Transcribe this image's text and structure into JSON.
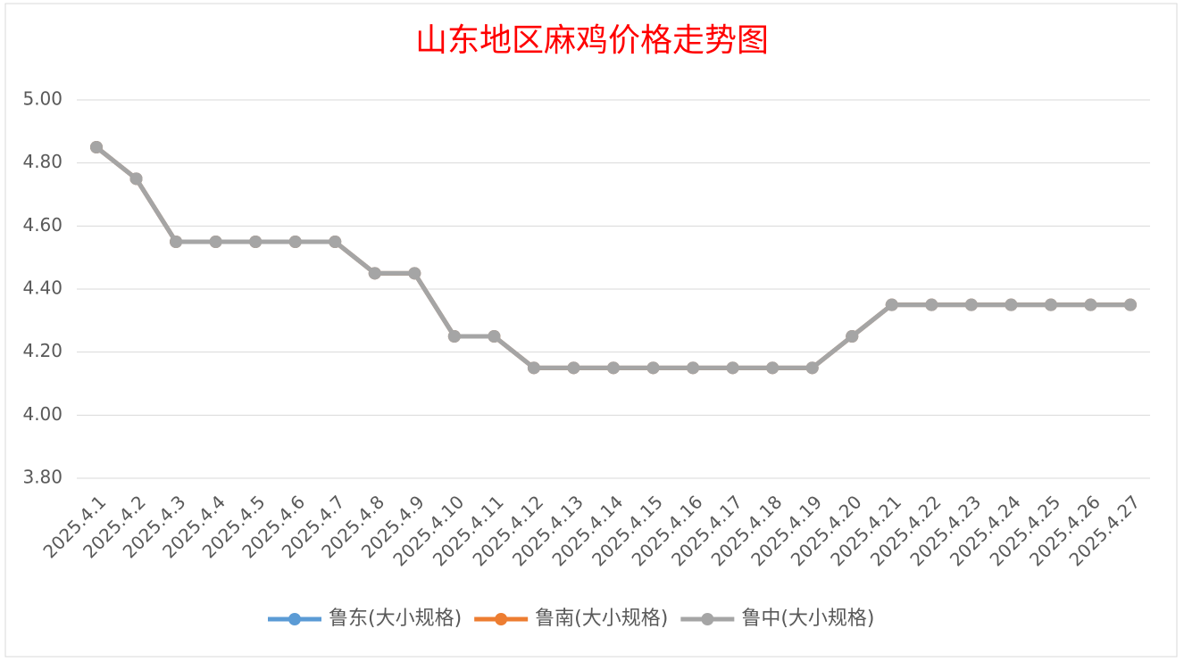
{
  "chart_data": {
    "type": "line",
    "title": "山东地区麻鸡价格走势图",
    "categories": [
      "2025.4.1",
      "2025.4.2",
      "2025.4.3",
      "2025.4.4",
      "2025.4.5",
      "2025.4.6",
      "2025.4.7",
      "2025.4.8",
      "2025.4.9",
      "2025.4.10",
      "2025.4.11",
      "2025.4.12",
      "2025.4.13",
      "2025.4.14",
      "2025.4.15",
      "2025.4.16",
      "2025.4.17",
      "2025.4.18",
      "2025.4.19",
      "2025.4.20",
      "2025.4.21",
      "2025.4.22",
      "2025.4.23",
      "2025.4.24",
      "2025.4.25",
      "2025.4.26",
      "2025.4.27"
    ],
    "series": [
      {
        "name": "鲁东(大小规格)",
        "color": "#5b9bd5",
        "values": [
          4.85,
          4.75,
          4.55,
          4.55,
          4.55,
          4.55,
          4.55,
          4.45,
          4.45,
          4.25,
          4.25,
          4.15,
          4.15,
          4.15,
          4.15,
          4.15,
          4.15,
          4.15,
          4.15,
          4.25,
          4.35,
          4.35,
          4.35,
          4.35,
          4.35,
          4.35,
          4.35
        ]
      },
      {
        "name": "鲁南(大小规格)",
        "color": "#ed7d31",
        "values": [
          4.85,
          4.75,
          4.55,
          4.55,
          4.55,
          4.55,
          4.55,
          4.45,
          4.45,
          4.25,
          4.25,
          4.15,
          4.15,
          4.15,
          4.15,
          4.15,
          4.15,
          4.15,
          4.15,
          4.25,
          4.35,
          4.35,
          4.35,
          4.35,
          4.35,
          4.35,
          4.35
        ]
      },
      {
        "name": "鲁中(大小规格)",
        "color": "#a5a5a5",
        "values": [
          4.85,
          4.75,
          4.55,
          4.55,
          4.55,
          4.55,
          4.55,
          4.45,
          4.45,
          4.25,
          4.25,
          4.15,
          4.15,
          4.15,
          4.15,
          4.15,
          4.15,
          4.15,
          4.15,
          4.25,
          4.35,
          4.35,
          4.35,
          4.35,
          4.35,
          4.35,
          4.35
        ]
      }
    ],
    "ylim": [
      3.8,
      5.0
    ],
    "yticks": [
      {
        "value": 3.8,
        "label": "3.80"
      },
      {
        "value": 4.0,
        "label": "4.00"
      },
      {
        "value": 4.2,
        "label": "4.20"
      },
      {
        "value": 4.4,
        "label": "4.40"
      },
      {
        "value": 4.6,
        "label": "4.60"
      },
      {
        "value": 4.8,
        "label": "4.80"
      },
      {
        "value": 5.0,
        "label": "5.00"
      }
    ],
    "grid": true,
    "legend": "bottom"
  }
}
